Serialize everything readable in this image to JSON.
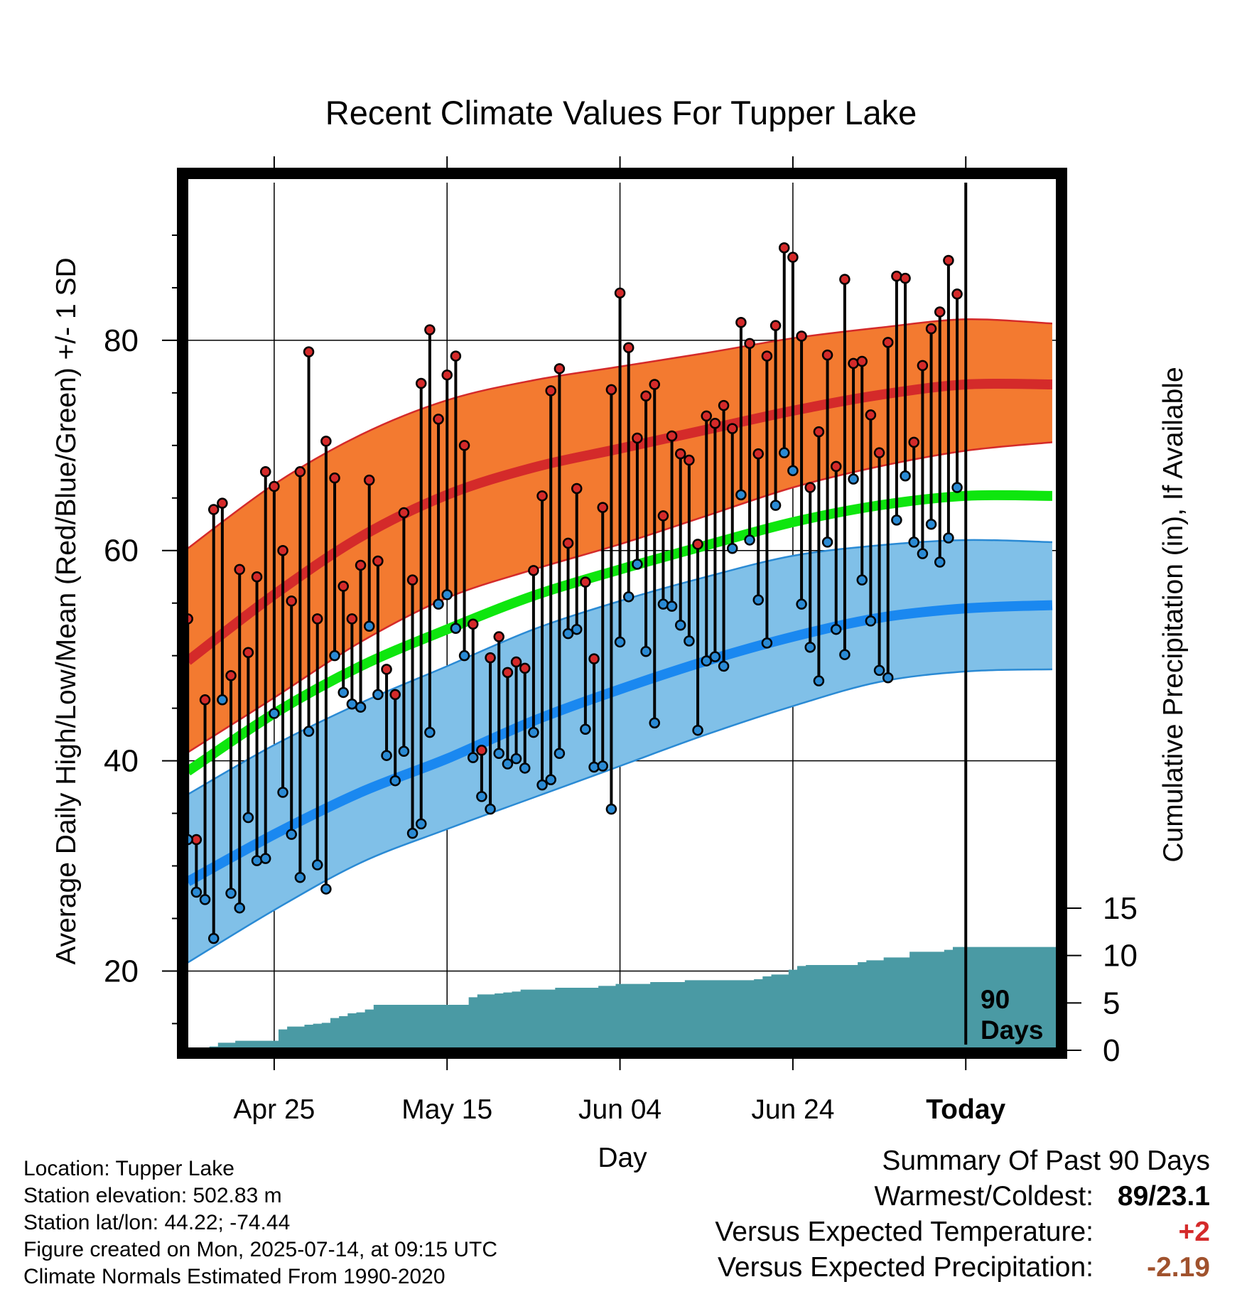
{
  "chart_data": {
    "type": "line",
    "title": "Recent Climate Values For Tupper Lake",
    "xlabel": "Day",
    "ylabel": "Average Daily High/Low/Mean (Red/Blue/Green) +/- 1 SD",
    "y2label": "Cumulative Precipitation (in), If Available",
    "x_tick_labels": [
      "Apr 25",
      "May 15",
      "Jun 04",
      "Jun 24",
      "Today"
    ],
    "x_tick_days": [
      10,
      30,
      50,
      70,
      90
    ],
    "xlim": [
      -0.1,
      100.5
    ],
    "ylim": [
      13,
      95
    ],
    "y_ticks": [
      20,
      40,
      60,
      80
    ],
    "y2lim": [
      0,
      30
    ],
    "y2_ticks": [
      0,
      5,
      10,
      15
    ],
    "today_marker": "90\nDays",
    "today_label_line1": "90",
    "today_label_line2": "Days",
    "grid": true,
    "normals": {
      "days": [
        0,
        10,
        20,
        30,
        40,
        50,
        60,
        70,
        80,
        90,
        100
      ],
      "high_mean": [
        49.5,
        55.8,
        61.3,
        65.3,
        67.9,
        69.7,
        71.5,
        73.3,
        74.8,
        75.8,
        75.8
      ],
      "high_upper": [
        60.2,
        66.3,
        71.0,
        74.3,
        76.2,
        77.5,
        78.8,
        80.2,
        81.2,
        82.0,
        81.6
      ],
      "high_lower": [
        40.8,
        46.0,
        51.3,
        55.5,
        58.2,
        60.6,
        63.3,
        66.0,
        68.0,
        69.5,
        70.3
      ],
      "mean": [
        39.0,
        44.5,
        49.0,
        52.5,
        55.7,
        58.2,
        60.5,
        62.7,
        64.3,
        65.2,
        65.2
      ],
      "low_mean": [
        28.5,
        33.0,
        37.0,
        40.2,
        43.8,
        46.8,
        49.5,
        51.8,
        53.6,
        54.5,
        54.8
      ],
      "low_upper": [
        36.8,
        41.5,
        45.5,
        49.0,
        52.5,
        55.2,
        57.5,
        59.5,
        60.5,
        61.0,
        60.8
      ],
      "low_lower": [
        20.8,
        25.8,
        30.3,
        33.5,
        36.5,
        39.5,
        42.5,
        45.2,
        47.5,
        48.5,
        48.7
      ]
    },
    "series": [
      {
        "name": "Daily High",
        "color": "#d42a2a",
        "values": [
          53.5,
          32.5,
          45.8,
          63.9,
          64.5,
          48.1,
          58.2,
          50.3,
          57.5,
          67.5,
          66.1,
          60.0,
          55.2,
          67.5,
          78.9,
          53.5,
          70.4,
          66.9,
          56.6,
          53.5,
          58.6,
          66.7,
          59.0,
          48.7,
          46.3,
          63.6,
          57.2,
          75.9,
          81.0,
          72.5,
          76.7,
          78.5,
          70.0,
          53.0,
          41.0,
          49.8,
          51.8,
          48.4,
          49.4,
          48.8,
          58.1,
          65.2,
          75.2,
          77.3,
          60.7,
          65.9,
          57.0,
          49.7,
          64.1,
          75.3,
          84.5,
          79.3,
          70.7,
          74.7,
          75.8,
          63.3,
          70.9,
          69.2,
          68.6,
          60.6,
          72.8,
          72.1,
          73.8,
          71.6,
          81.7,
          79.7,
          69.2,
          78.5,
          81.4,
          88.8,
          87.9,
          80.4,
          66.0,
          71.3,
          78.6,
          68.0,
          85.8,
          77.8,
          78.0,
          72.9,
          69.3,
          79.8,
          86.1,
          85.9,
          70.3,
          77.6,
          81.1,
          82.7,
          87.6,
          84.4
        ]
      },
      {
        "name": "Daily Low",
        "color": "#2a8ad4",
        "values": [
          32.5,
          27.5,
          26.8,
          23.1,
          45.8,
          27.4,
          26.0,
          34.6,
          30.5,
          30.7,
          44.5,
          37.0,
          33.0,
          28.9,
          42.8,
          30.1,
          27.8,
          50.0,
          46.5,
          45.4,
          45.1,
          52.8,
          46.3,
          40.5,
          38.1,
          40.9,
          33.1,
          34.0,
          42.7,
          54.9,
          55.8,
          52.6,
          50.0,
          40.3,
          36.6,
          35.4,
          40.7,
          39.7,
          40.2,
          39.3,
          42.7,
          37.7,
          38.2,
          40.7,
          52.1,
          52.5,
          43.0,
          39.4,
          39.5,
          35.4,
          51.3,
          55.6,
          58.7,
          50.4,
          43.6,
          54.9,
          54.7,
          52.9,
          51.4,
          42.9,
          49.5,
          49.9,
          49.0,
          60.2,
          65.3,
          61.0,
          55.3,
          51.2,
          64.3,
          69.3,
          67.6,
          54.9,
          50.8,
          47.6,
          60.8,
          52.5,
          50.1,
          66.8,
          57.2,
          53.3,
          48.6,
          47.9,
          62.9,
          67.1,
          60.8,
          59.7,
          62.5,
          58.9,
          61.2,
          66.0
        ]
      }
    ],
    "precipitation": {
      "name": "Cumulative Precipitation",
      "color": "#4a9aa4",
      "days": [
        3,
        4,
        5,
        6,
        7,
        8,
        9,
        10,
        11,
        12,
        13,
        14,
        15,
        16,
        17,
        18,
        19,
        20,
        21,
        22,
        23,
        24,
        25,
        26,
        27,
        28,
        29,
        30,
        31,
        32,
        33,
        34,
        35,
        36,
        37,
        38,
        39,
        40,
        41,
        42,
        43,
        44,
        45,
        46,
        47,
        48,
        49,
        50,
        51,
        52,
        53,
        54,
        55,
        56,
        57,
        58,
        59,
        60,
        61,
        62,
        63,
        64,
        65,
        66,
        67,
        68,
        69,
        70,
        71,
        72,
        73,
        74,
        75,
        76,
        77,
        78,
        79,
        80,
        81,
        82,
        83,
        84,
        85,
        86,
        87,
        88,
        89,
        90,
        91,
        92,
        93,
        94,
        95,
        96,
        97,
        98,
        99,
        100
      ],
      "values": [
        0.4,
        0.8,
        0.8,
        1.0,
        1.0,
        1.0,
        1.0,
        1.0,
        2.2,
        2.5,
        2.5,
        2.7,
        2.8,
        2.9,
        3.4,
        3.6,
        3.9,
        4.0,
        4.3,
        4.8,
        4.8,
        4.8,
        4.8,
        4.8,
        4.8,
        4.8,
        4.8,
        4.8,
        4.8,
        4.8,
        5.6,
        5.9,
        5.9,
        6.0,
        6.1,
        6.2,
        6.4,
        6.4,
        6.4,
        6.4,
        6.6,
        6.6,
        6.6,
        6.6,
        6.6,
        6.8,
        6.8,
        7.0,
        7.0,
        7.0,
        7.0,
        7.2,
        7.2,
        7.2,
        7.2,
        7.4,
        7.4,
        7.4,
        7.4,
        7.4,
        7.4,
        7.4,
        7.4,
        7.5,
        7.8,
        8.0,
        8.0,
        8.5,
        8.9,
        9.0,
        9.0,
        9.0,
        9.0,
        9.0,
        9.0,
        9.3,
        9.5,
        9.5,
        9.8,
        9.8,
        9.8,
        10.4,
        10.4,
        10.4,
        10.4,
        10.6,
        10.9,
        10.9,
        10.9,
        10.9,
        10.9,
        10.9,
        10.9,
        10.9,
        10.9,
        10.9,
        10.9,
        10.9
      ]
    }
  },
  "info": {
    "location": "Location: Tupper Lake",
    "elevation": "Station elevation: 502.83 m",
    "latlon": "Station lat/lon: 44.22; -74.44",
    "created": "Figure created on Mon, 2025-07-14, at 09:15 UTC",
    "normals": "Climate Normals Estimated From 1990-2020"
  },
  "summary": {
    "title": "Summary Of Past 90 Days",
    "warmest_coldest_label": "Warmest/Coldest:",
    "warmest_coldest_value": "89/23.1",
    "temp_label": "Versus Expected Temperature:",
    "temp_value": "+2",
    "temp_color": "#d42a2a",
    "precip_label": "Versus Expected Precipitation:",
    "precip_value": "-2.19",
    "precip_color": "#a0522d"
  }
}
